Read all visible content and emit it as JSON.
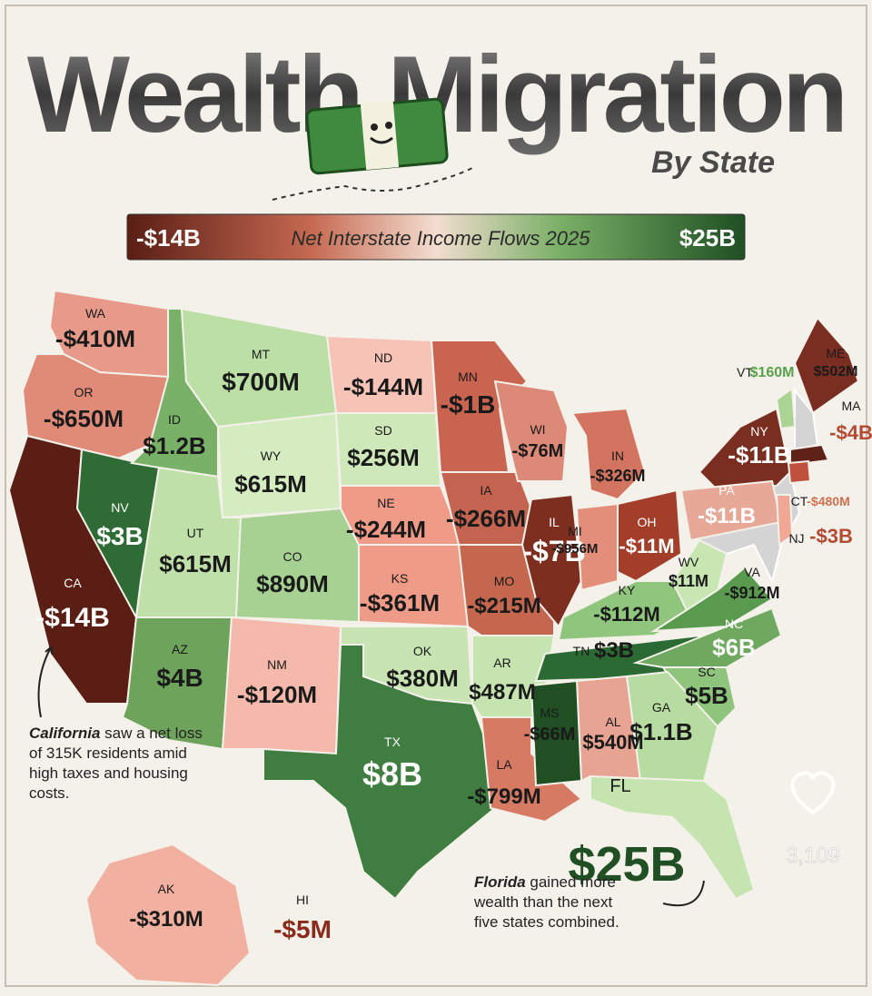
{
  "header": {
    "title": "Wealth Migration",
    "subtitle": "By State"
  },
  "legend": {
    "min_label": "-$14B",
    "title": "Net Interstate Income Flows 2025",
    "max_label": "$25B"
  },
  "states": [
    {
      "abbr": "WA",
      "value": "-$410M",
      "color": "#e79a8a"
    },
    {
      "abbr": "OR",
      "value": "-$650M",
      "color": "#e08a78"
    },
    {
      "abbr": "CA",
      "value": "-$14B",
      "color": "#5a1e14"
    },
    {
      "abbr": "NV",
      "value": "$3B",
      "color": "#2f6b35"
    },
    {
      "abbr": "ID",
      "value": "$1.2B",
      "color": "#78b167"
    },
    {
      "abbr": "MT",
      "value": "$700M",
      "color": "#bcdfa5"
    },
    {
      "abbr": "WY",
      "value": "$615M",
      "color": "#d5ecc0"
    },
    {
      "abbr": "UT",
      "value": "$615M",
      "color": "#bfe0a8"
    },
    {
      "abbr": "CO",
      "value": "$890M",
      "color": "#a7d192"
    },
    {
      "abbr": "AZ",
      "value": "$4B",
      "color": "#6ea35c"
    },
    {
      "abbr": "NM",
      "value": "-$120M",
      "color": "#f4b9ab"
    },
    {
      "abbr": "ND",
      "value": "-$144M",
      "color": "#f7c3b6"
    },
    {
      "abbr": "SD",
      "value": "$256M",
      "color": "#cfe8ba"
    },
    {
      "abbr": "NE",
      "value": "-$244M",
      "color": "#ef9b88"
    },
    {
      "abbr": "KS",
      "value": "-$361M",
      "color": "#ee9b88"
    },
    {
      "abbr": "OK",
      "value": "$380M",
      "color": "#c7e4b2"
    },
    {
      "abbr": "TX",
      "value": "$8B",
      "color": "#3f7d40"
    },
    {
      "abbr": "MN",
      "value": "-$1B",
      "color": "#c96450"
    },
    {
      "abbr": "IA",
      "value": "-$266M",
      "color": "#c46450"
    },
    {
      "abbr": "MO",
      "value": "-$215M",
      "color": "#c5674f"
    },
    {
      "abbr": "AR",
      "value": "$487M",
      "color": "#c6e4b0"
    },
    {
      "abbr": "LA",
      "value": "-$799M",
      "color": "#d67a64"
    },
    {
      "abbr": "WI",
      "value": "-$76M",
      "color": "#dc8a77"
    },
    {
      "abbr": "IL",
      "value": "-$7B",
      "color": "#7e2e1f"
    },
    {
      "abbr": "MI",
      "value": "-$956M",
      "color": "#d27460"
    },
    {
      "abbr": "IN",
      "value": "-$326M",
      "color": "#e28e7b"
    },
    {
      "abbr": "OH",
      "value": "-$11M",
      "color": "#a33e2a"
    },
    {
      "abbr": "KY",
      "value": "-$112M",
      "color": "#8fc57c"
    },
    {
      "abbr": "WV",
      "value": "$11M",
      "color": "#c7e6b2"
    },
    {
      "abbr": "VA",
      "value": "-$912M",
      "color": "#6fa95f"
    },
    {
      "abbr": "TN",
      "value": "$3B",
      "color": "#5a9a4f"
    },
    {
      "abbr": "NC",
      "value": "$6B",
      "color": "#2b6a33"
    },
    {
      "abbr": "SC",
      "value": "$5B",
      "color": "#6fa95f"
    },
    {
      "abbr": "GA",
      "value": "$1.1B",
      "color": "#8ec47c"
    },
    {
      "abbr": "AL",
      "value": "$540M",
      "color": "#b7dca1"
    },
    {
      "abbr": "MS",
      "value": "-$66M",
      "color": "#e8a492"
    },
    {
      "abbr": "FL",
      "value": "$25B",
      "color": "#1f4f23"
    },
    {
      "abbr": "VT",
      "value": "$160M",
      "color": "#c5e4b0"
    },
    {
      "abbr": "ME",
      "value": "$502M",
      "color": "#a9d494"
    },
    {
      "abbr": "MA",
      "value": "-$4B",
      "color": "#7a2e22"
    },
    {
      "abbr": "NY",
      "value": "-$11B",
      "color": "#5e2218"
    },
    {
      "abbr": "PA",
      "value": "-$11B",
      "color": "#7a2e20"
    },
    {
      "abbr": "CT",
      "value": "-$480M",
      "color": "#e8a898"
    },
    {
      "abbr": "NJ",
      "value": "-$3B",
      "color": "#c0513d"
    },
    {
      "abbr": "AK",
      "value": "-$310M",
      "color": "#f0a894"
    },
    {
      "abbr": "HI",
      "value": "-$5M",
      "color": "#f2b1a0"
    }
  ],
  "annotations": [
    {
      "bold": "California",
      "text": "saw a net loss of 315K residents amid high taxes and housing costs."
    },
    {
      "bold": "Florida",
      "text": "gained more wealth than the next five states combined."
    }
  ],
  "likes": "3,109"
}
